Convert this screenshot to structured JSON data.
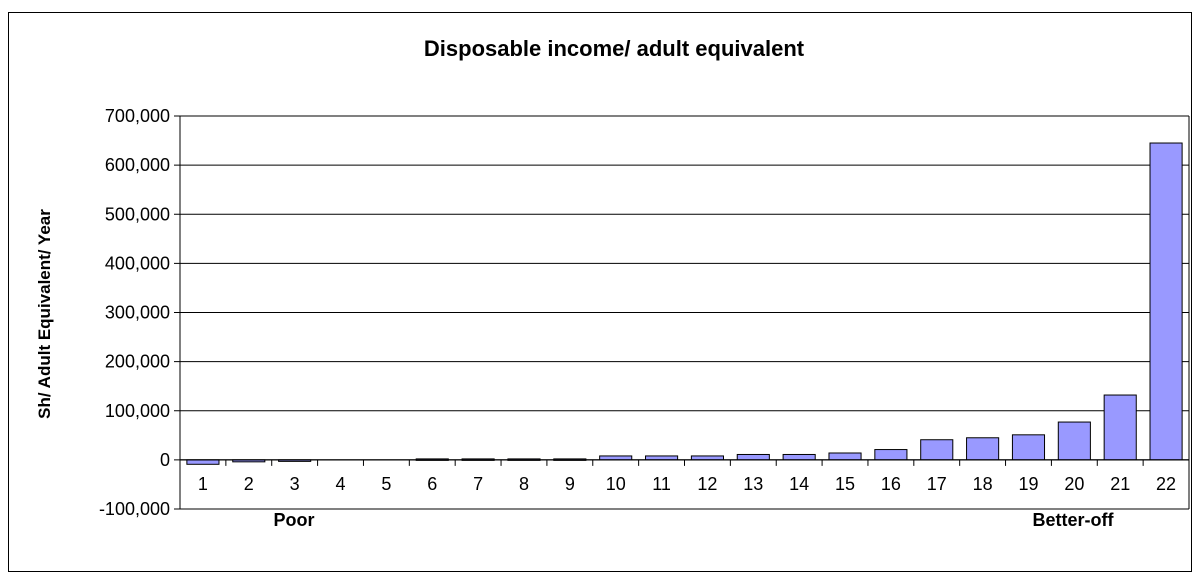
{
  "chart_data": {
    "type": "bar",
    "title": "Disposable income/ adult equivalent",
    "xlabel": "",
    "ylabel": "Sh/ Adult Equivalent/ Year",
    "ylim": [
      -100000,
      700000
    ],
    "yticks": [
      "700,000",
      "600,000",
      "500,000",
      "400,000",
      "300,000",
      "200,000",
      "100,000",
      "0",
      "-100,000"
    ],
    "ytick_values": [
      700000,
      600000,
      500000,
      400000,
      300000,
      200000,
      100000,
      0,
      -100000
    ],
    "categories": [
      "1",
      "2",
      "3",
      "4",
      "5",
      "6",
      "7",
      "8",
      "9",
      "10",
      "11",
      "12",
      "13",
      "14",
      "15",
      "16",
      "17",
      "18",
      "19",
      "20",
      "21",
      "22"
    ],
    "values": [
      -9000,
      -4000,
      -3000,
      0,
      0,
      2000,
      2000,
      2000,
      2000,
      8000,
      8000,
      8000,
      11000,
      11000,
      14000,
      21000,
      41000,
      45000,
      51000,
      77000,
      132000,
      645000
    ],
    "grid": true,
    "bar_color": "#9999ff",
    "annotations": [
      "Poor",
      "Better-off"
    ]
  }
}
